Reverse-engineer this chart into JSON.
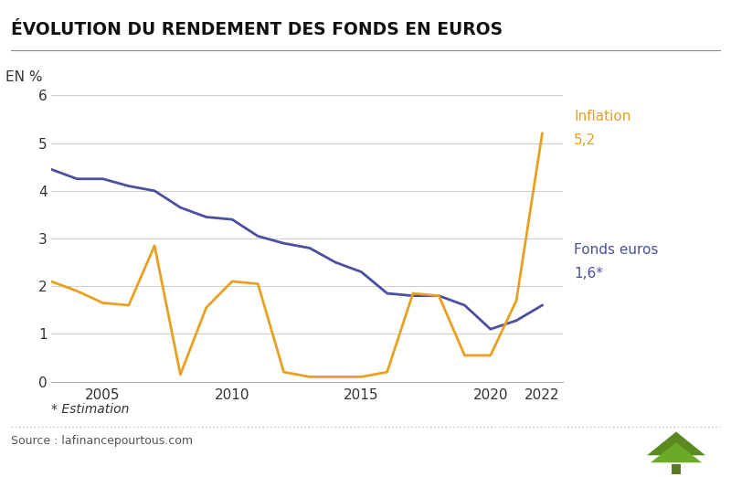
{
  "title": "ÉVOLUTION DU RENDEMENT DES FONDS EN EUROS",
  "ylabel": "EN %",
  "background_color": "#ffffff",
  "fonds_euros_x": [
    2003,
    2004,
    2005,
    2006,
    2007,
    2008,
    2009,
    2010,
    2011,
    2012,
    2013,
    2014,
    2015,
    2016,
    2017,
    2018,
    2019,
    2020,
    2021,
    2022
  ],
  "fonds_euros_y": [
    4.45,
    4.25,
    4.25,
    4.1,
    4.0,
    3.65,
    3.45,
    3.4,
    3.05,
    2.9,
    2.8,
    2.5,
    2.3,
    1.85,
    1.8,
    1.8,
    1.6,
    1.1,
    1.28,
    1.6
  ],
  "fonds_color": "#4b4fa0",
  "inflation_x": [
    2003,
    2004,
    2005,
    2006,
    2007,
    2008,
    2009,
    2010,
    2011,
    2012,
    2013,
    2014,
    2015,
    2016,
    2017,
    2018,
    2019,
    2020,
    2021,
    2022
  ],
  "inflation_y": [
    2.1,
    1.9,
    1.65,
    1.6,
    2.85,
    0.15,
    1.55,
    2.1,
    2.05,
    0.2,
    0.1,
    0.1,
    0.1,
    0.2,
    1.85,
    1.8,
    0.55,
    0.55,
    1.7,
    5.2
  ],
  "infl_color": "#e8a020",
  "ylim": [
    0,
    6
  ],
  "yticks": [
    0,
    1,
    2,
    3,
    4,
    5,
    6
  ],
  "xlim": [
    2003,
    2022.8
  ],
  "xticks": [
    2005,
    2010,
    2015,
    2020,
    2022
  ],
  "source_text": "Source : lafinancepourtous.com",
  "estimation_text": "* Estimation",
  "grid_color": "#cccccc",
  "line_width": 2.0,
  "infl_label": "Inflation\n5,2",
  "fonds_label": "Fonds euros\n1,6*"
}
